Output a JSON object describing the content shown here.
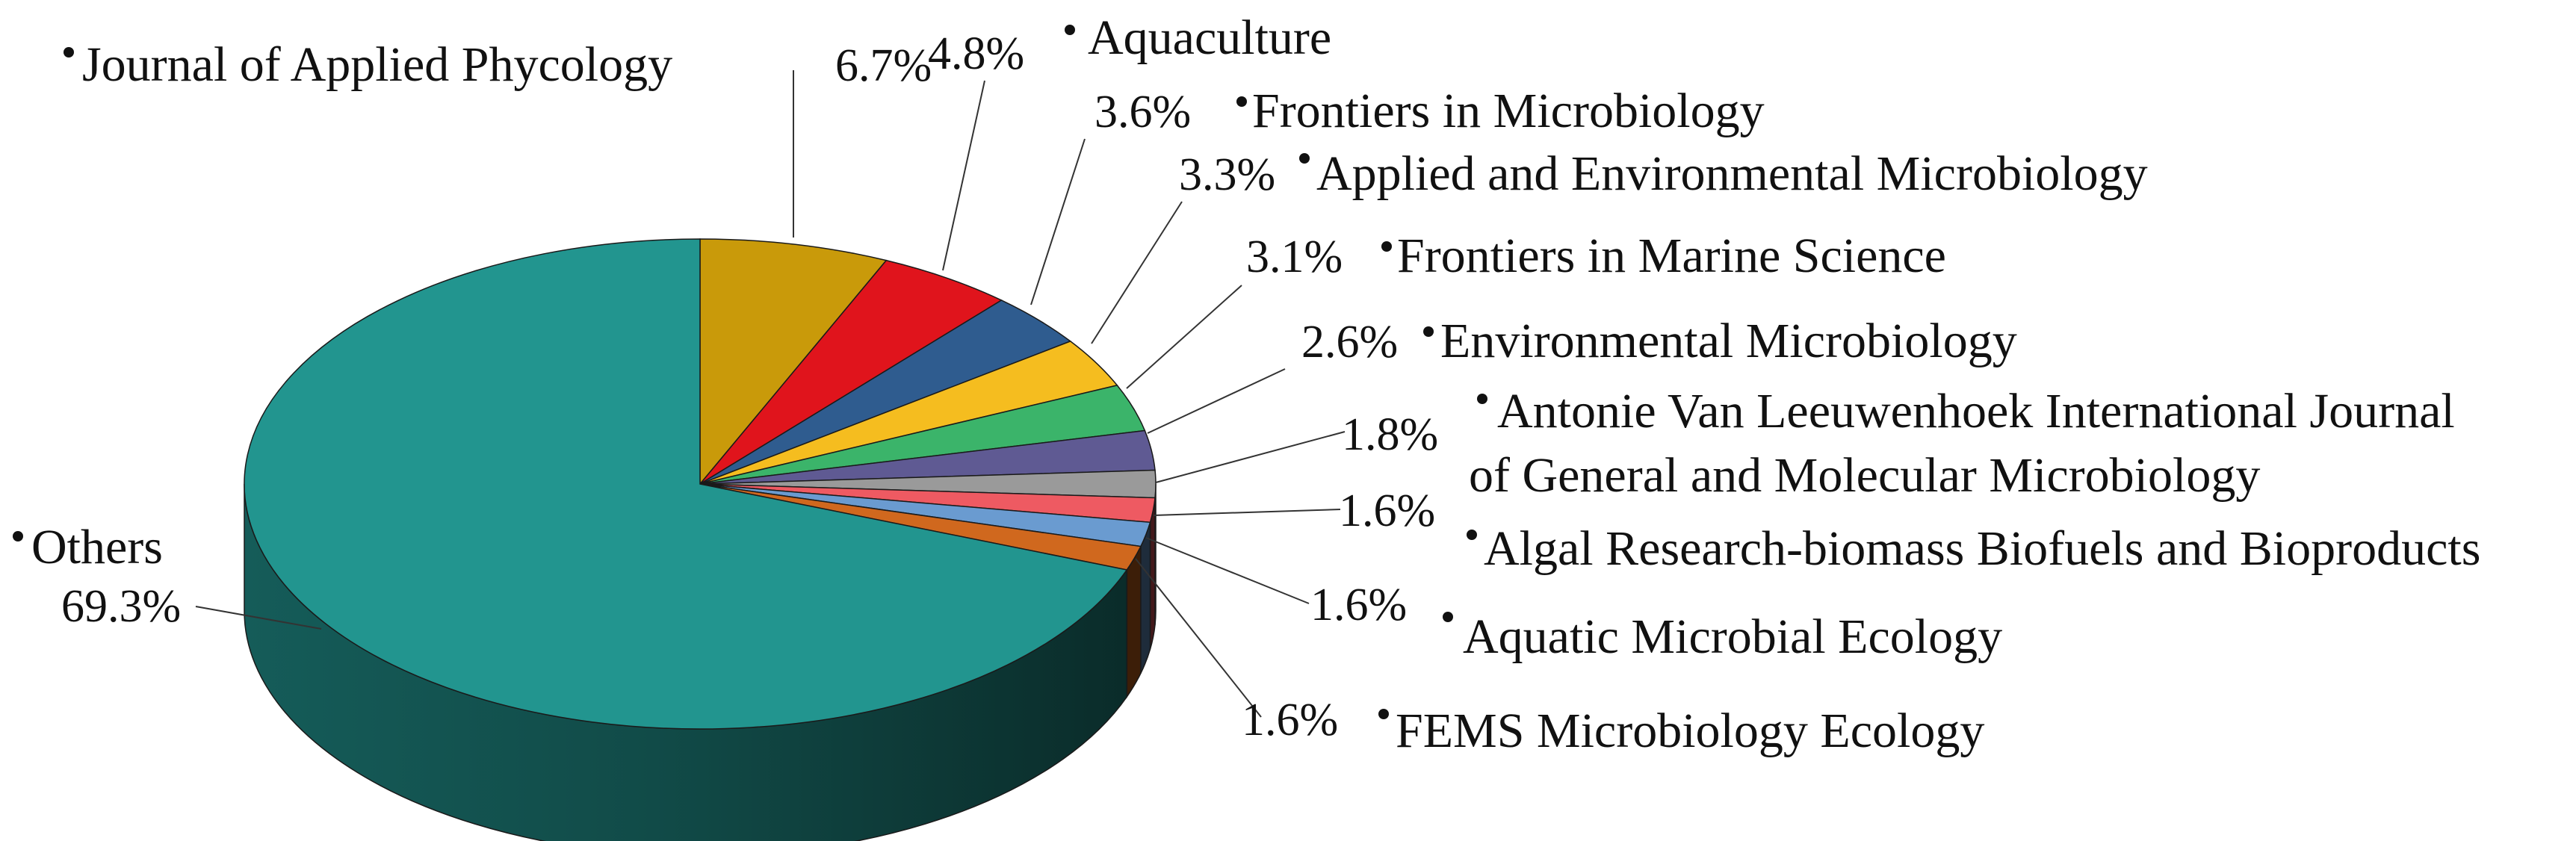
{
  "chart_data": {
    "type": "pie",
    "title": "",
    "slices": [
      {
        "label": "Journal of Applied Phycology",
        "value": 6.7,
        "pct_label": "6.7%",
        "color": "#c99a0a"
      },
      {
        "label": "Aquaculture",
        "value": 4.8,
        "pct_label": "4.8%",
        "color": "#e0141c"
      },
      {
        "label": "Frontiers in Microbiology",
        "value": 3.6,
        "pct_label": "3.6%",
        "color": "#2f5c8f"
      },
      {
        "label": "Applied and Environmental Microbiology",
        "value": 3.3,
        "pct_label": "3.3%",
        "color": "#f5bd1f"
      },
      {
        "label": "Frontiers in Marine Science",
        "value": 3.1,
        "pct_label": "3.1%",
        "color": "#3bb46a"
      },
      {
        "label": "Environmental Microbiology",
        "value": 2.6,
        "pct_label": "2.6%",
        "color": "#5f5a93"
      },
      {
        "label": "Antonie Van Leeuwenhoek International Journal of General and Molecular Microbiology",
        "label_lines": [
          "Antonie Van Leeuwenhoek International Journal",
          "of General and Molecular Microbiology"
        ],
        "value": 1.8,
        "pct_label": "1.8%",
        "color": "#9a9a9a"
      },
      {
        "label": "Algal Research-biomass Biofuels and Bioproducts",
        "value": 1.6,
        "pct_label": "1.6%",
        "color": "#ee5a62"
      },
      {
        "label": "Aquatic Microbial Ecology",
        "value": 1.6,
        "pct_label": "1.6%",
        "color": "#6a9bd0"
      },
      {
        "label": "FEMS Microbiology Ecology",
        "value": 1.6,
        "pct_label": "1.6%",
        "color": "#d0681e"
      },
      {
        "label": "Others",
        "value": 69.3,
        "pct_label": "69.3%",
        "color": "#22958f"
      }
    ]
  }
}
